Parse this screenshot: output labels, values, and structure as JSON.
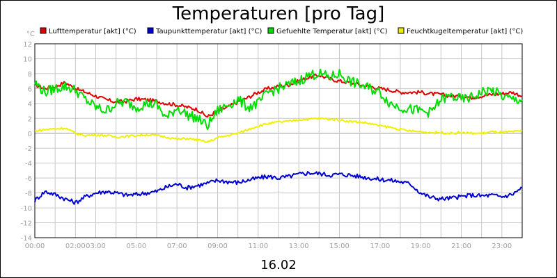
{
  "chart_data": {
    "type": "line",
    "title": "Temperaturen [pro Tag]",
    "ylabel": "°C",
    "xlabel": "16.02",
    "ylim": [
      -14,
      12
    ],
    "yticks": [
      12,
      10,
      8,
      6,
      4,
      2,
      0,
      -2,
      -4,
      -6,
      -8,
      -10,
      -12,
      -14
    ],
    "xlim": [
      0,
      24
    ],
    "xticks": [
      {
        "label": "00:00",
        "hour": 0
      },
      {
        "label": "02:00",
        "hour": 2
      },
      {
        "label": "03:00",
        "hour": 3
      },
      {
        "label": "05:00",
        "hour": 5
      },
      {
        "label": "07:00",
        "hour": 7
      },
      {
        "label": "09:00",
        "hour": 9
      },
      {
        "label": "11:00",
        "hour": 11
      },
      {
        "label": "13:00",
        "hour": 13
      },
      {
        "label": "15:00",
        "hour": 15
      },
      {
        "label": "17:00",
        "hour": 17
      },
      {
        "label": "19:00",
        "hour": 19
      },
      {
        "label": "21:00",
        "hour": 21
      },
      {
        "label": "23:00",
        "hour": 23
      }
    ],
    "grid": true,
    "legend_position": "top",
    "x": [
      0,
      0.5,
      1,
      1.5,
      2,
      2.5,
      3,
      3.5,
      4,
      4.5,
      5,
      5.5,
      6,
      6.5,
      7,
      7.5,
      8,
      8.5,
      9,
      9.5,
      10,
      10.5,
      11,
      11.5,
      12,
      12.5,
      13,
      13.5,
      14,
      14.5,
      15,
      15.5,
      16,
      16.5,
      17,
      17.5,
      18,
      18.5,
      19,
      19.5,
      20,
      20.5,
      21,
      21.5,
      22,
      22.5,
      23,
      23.5,
      24
    ],
    "series": [
      {
        "name": "Lufttemperatur [akt] (°C)",
        "color": "#e00000",
        "values": [
          6.5,
          6.0,
          6.3,
          6.8,
          6.0,
          5.5,
          5.0,
          4.5,
          4.2,
          4.3,
          4.6,
          4.5,
          4.3,
          4.0,
          3.8,
          3.5,
          3.2,
          2.2,
          3.0,
          3.5,
          4.2,
          4.8,
          5.5,
          6.0,
          6.3,
          6.5,
          7.0,
          7.5,
          7.8,
          7.3,
          7.0,
          6.8,
          6.5,
          6.3,
          6.0,
          5.8,
          5.5,
          5.5,
          5.5,
          5.3,
          5.2,
          5.0,
          5.0,
          4.8,
          5.0,
          5.2,
          5.3,
          5.5,
          5.0
        ]
      },
      {
        "name": "Taupunkttemperatur [akt] (°C)",
        "color": "#0000d0",
        "values": [
          -9.0,
          -7.8,
          -8.2,
          -8.8,
          -9.3,
          -8.5,
          -8.0,
          -7.8,
          -8.0,
          -8.3,
          -8.2,
          -8.0,
          -7.8,
          -7.2,
          -6.8,
          -7.3,
          -7.0,
          -6.7,
          -6.3,
          -6.5,
          -6.6,
          -6.3,
          -6.0,
          -5.8,
          -6.0,
          -5.8,
          -5.5,
          -5.3,
          -5.4,
          -5.6,
          -5.5,
          -5.6,
          -5.8,
          -6.0,
          -6.2,
          -6.3,
          -6.5,
          -6.8,
          -8.0,
          -8.6,
          -8.8,
          -8.7,
          -8.5,
          -8.3,
          -8.4,
          -8.3,
          -8.5,
          -8.2,
          -7.3
        ]
      },
      {
        "name": "Gefuehlte Temperatur [akt] (°C)",
        "color": "#00dd00",
        "values": [
          6.8,
          5.5,
          6.0,
          6.3,
          5.8,
          4.5,
          3.5,
          3.0,
          4.0,
          4.2,
          3.5,
          4.0,
          3.8,
          2.0,
          3.5,
          2.5,
          2.0,
          1.0,
          3.0,
          3.8,
          4.5,
          3.5,
          4.0,
          5.5,
          6.0,
          6.5,
          7.0,
          7.8,
          8.0,
          7.5,
          8.0,
          7.0,
          6.5,
          6.0,
          5.5,
          4.0,
          3.5,
          3.2,
          3.0,
          2.8,
          4.5,
          5.0,
          4.5,
          4.8,
          5.5,
          5.8,
          5.0,
          4.5,
          4.5
        ]
      },
      {
        "name": "Feuchtkugeltemperatur [akt] (°C)",
        "color": "#f0f000",
        "values": [
          0.3,
          0.5,
          0.6,
          0.7,
          0.0,
          -0.3,
          -0.2,
          -0.3,
          -0.5,
          -0.4,
          -0.3,
          -0.2,
          -0.3,
          -0.5,
          -0.8,
          -0.7,
          -0.9,
          -1.2,
          -0.6,
          -0.3,
          0.0,
          0.5,
          1.0,
          1.3,
          1.5,
          1.6,
          1.8,
          1.9,
          2.0,
          1.9,
          1.8,
          1.6,
          1.5,
          1.3,
          1.0,
          0.8,
          0.5,
          0.3,
          0.2,
          0.1,
          0.1,
          0.0,
          0.1,
          0.0,
          0.0,
          0.2,
          0.1,
          0.2,
          0.3
        ]
      }
    ]
  }
}
